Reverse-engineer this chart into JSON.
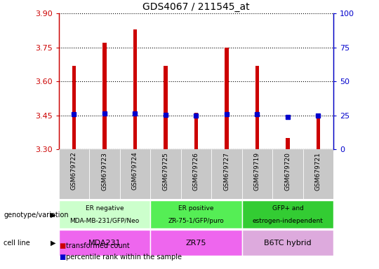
{
  "title": "GDS4067 / 211545_at",
  "samples": [
    "GSM679722",
    "GSM679723",
    "GSM679724",
    "GSM679725",
    "GSM679726",
    "GSM679727",
    "GSM679719",
    "GSM679720",
    "GSM679721"
  ],
  "transformed_counts": [
    3.67,
    3.77,
    3.83,
    3.67,
    3.46,
    3.75,
    3.67,
    3.35,
    3.45
  ],
  "percentile_values": [
    3.455,
    3.457,
    3.459,
    3.451,
    3.449,
    3.455,
    3.454,
    3.444,
    3.449
  ],
  "y_min": 3.3,
  "y_max": 3.9,
  "y_ticks": [
    3.3,
    3.45,
    3.6,
    3.75,
    3.9
  ],
  "y_right_ticks": [
    0,
    25,
    50,
    75,
    100
  ],
  "bar_color": "#cc0000",
  "dot_color": "#0000cc",
  "bar_width": 0.12,
  "tick_bg_color": "#c8c8c8",
  "plot_bg_color": "#ffffff",
  "groups": [
    {
      "label": "ER negative\nMDA-MB-231/GFP/Neo",
      "start": 0,
      "end": 3,
      "color": "#ccffcc"
    },
    {
      "label": "ER positive\nZR-75-1/GFP/puro",
      "start": 3,
      "end": 6,
      "color": "#55ee55"
    },
    {
      "label": "GFP+ and\nestrogen-independent",
      "start": 6,
      "end": 9,
      "color": "#33cc33"
    }
  ],
  "cell_lines": [
    {
      "label": "MDA231",
      "start": 0,
      "end": 3,
      "color": "#ee66ee"
    },
    {
      "label": "ZR75",
      "start": 3,
      "end": 6,
      "color": "#ee66ee"
    },
    {
      "label": "B6TC hybrid",
      "start": 6,
      "end": 9,
      "color": "#ddaadd"
    }
  ],
  "genotype_label": "genotype/variation",
  "cell_line_label": "cell line",
  "legend": [
    {
      "color": "#cc0000",
      "label": "transformed count"
    },
    {
      "color": "#0000cc",
      "label": "percentile rank within the sample"
    }
  ],
  "fig_width": 5.4,
  "fig_height": 3.84,
  "dpi": 100
}
